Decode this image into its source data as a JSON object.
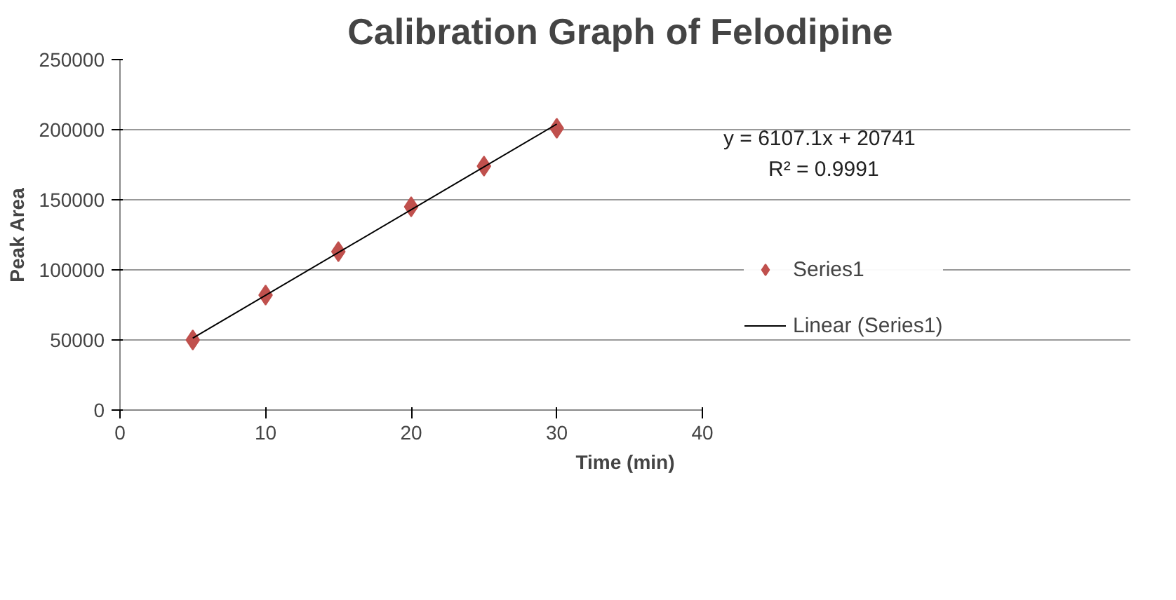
{
  "chart_data": {
    "type": "scatter",
    "title": "Calibration Graph of  Felodipine",
    "xlabel": "Time (min)",
    "ylabel": "Peak Area",
    "x": [
      5,
      10,
      15,
      20,
      25,
      30
    ],
    "series": [
      {
        "name": "Series1",
        "type": "scatter",
        "color": "#c0504d",
        "marker": "diamond",
        "values": [
          50000,
          82000,
          113000,
          145000,
          174000,
          201000
        ]
      },
      {
        "name": "Linear (Series1)",
        "type": "line",
        "color": "#000000",
        "line_style": "solid",
        "x": [
          5,
          30
        ],
        "values": [
          51300,
          204000
        ]
      }
    ],
    "annotations": [
      "y = 6107.1x + 20741",
      "R² = 0.9991"
    ],
    "xlim": [
      0,
      40
    ],
    "xticks": [
      0,
      10,
      20,
      30,
      40
    ],
    "ylim": [
      0,
      250000
    ],
    "yticks": [
      0,
      50000,
      100000,
      150000,
      200000,
      250000
    ],
    "grid": "y",
    "legend": "right"
  }
}
